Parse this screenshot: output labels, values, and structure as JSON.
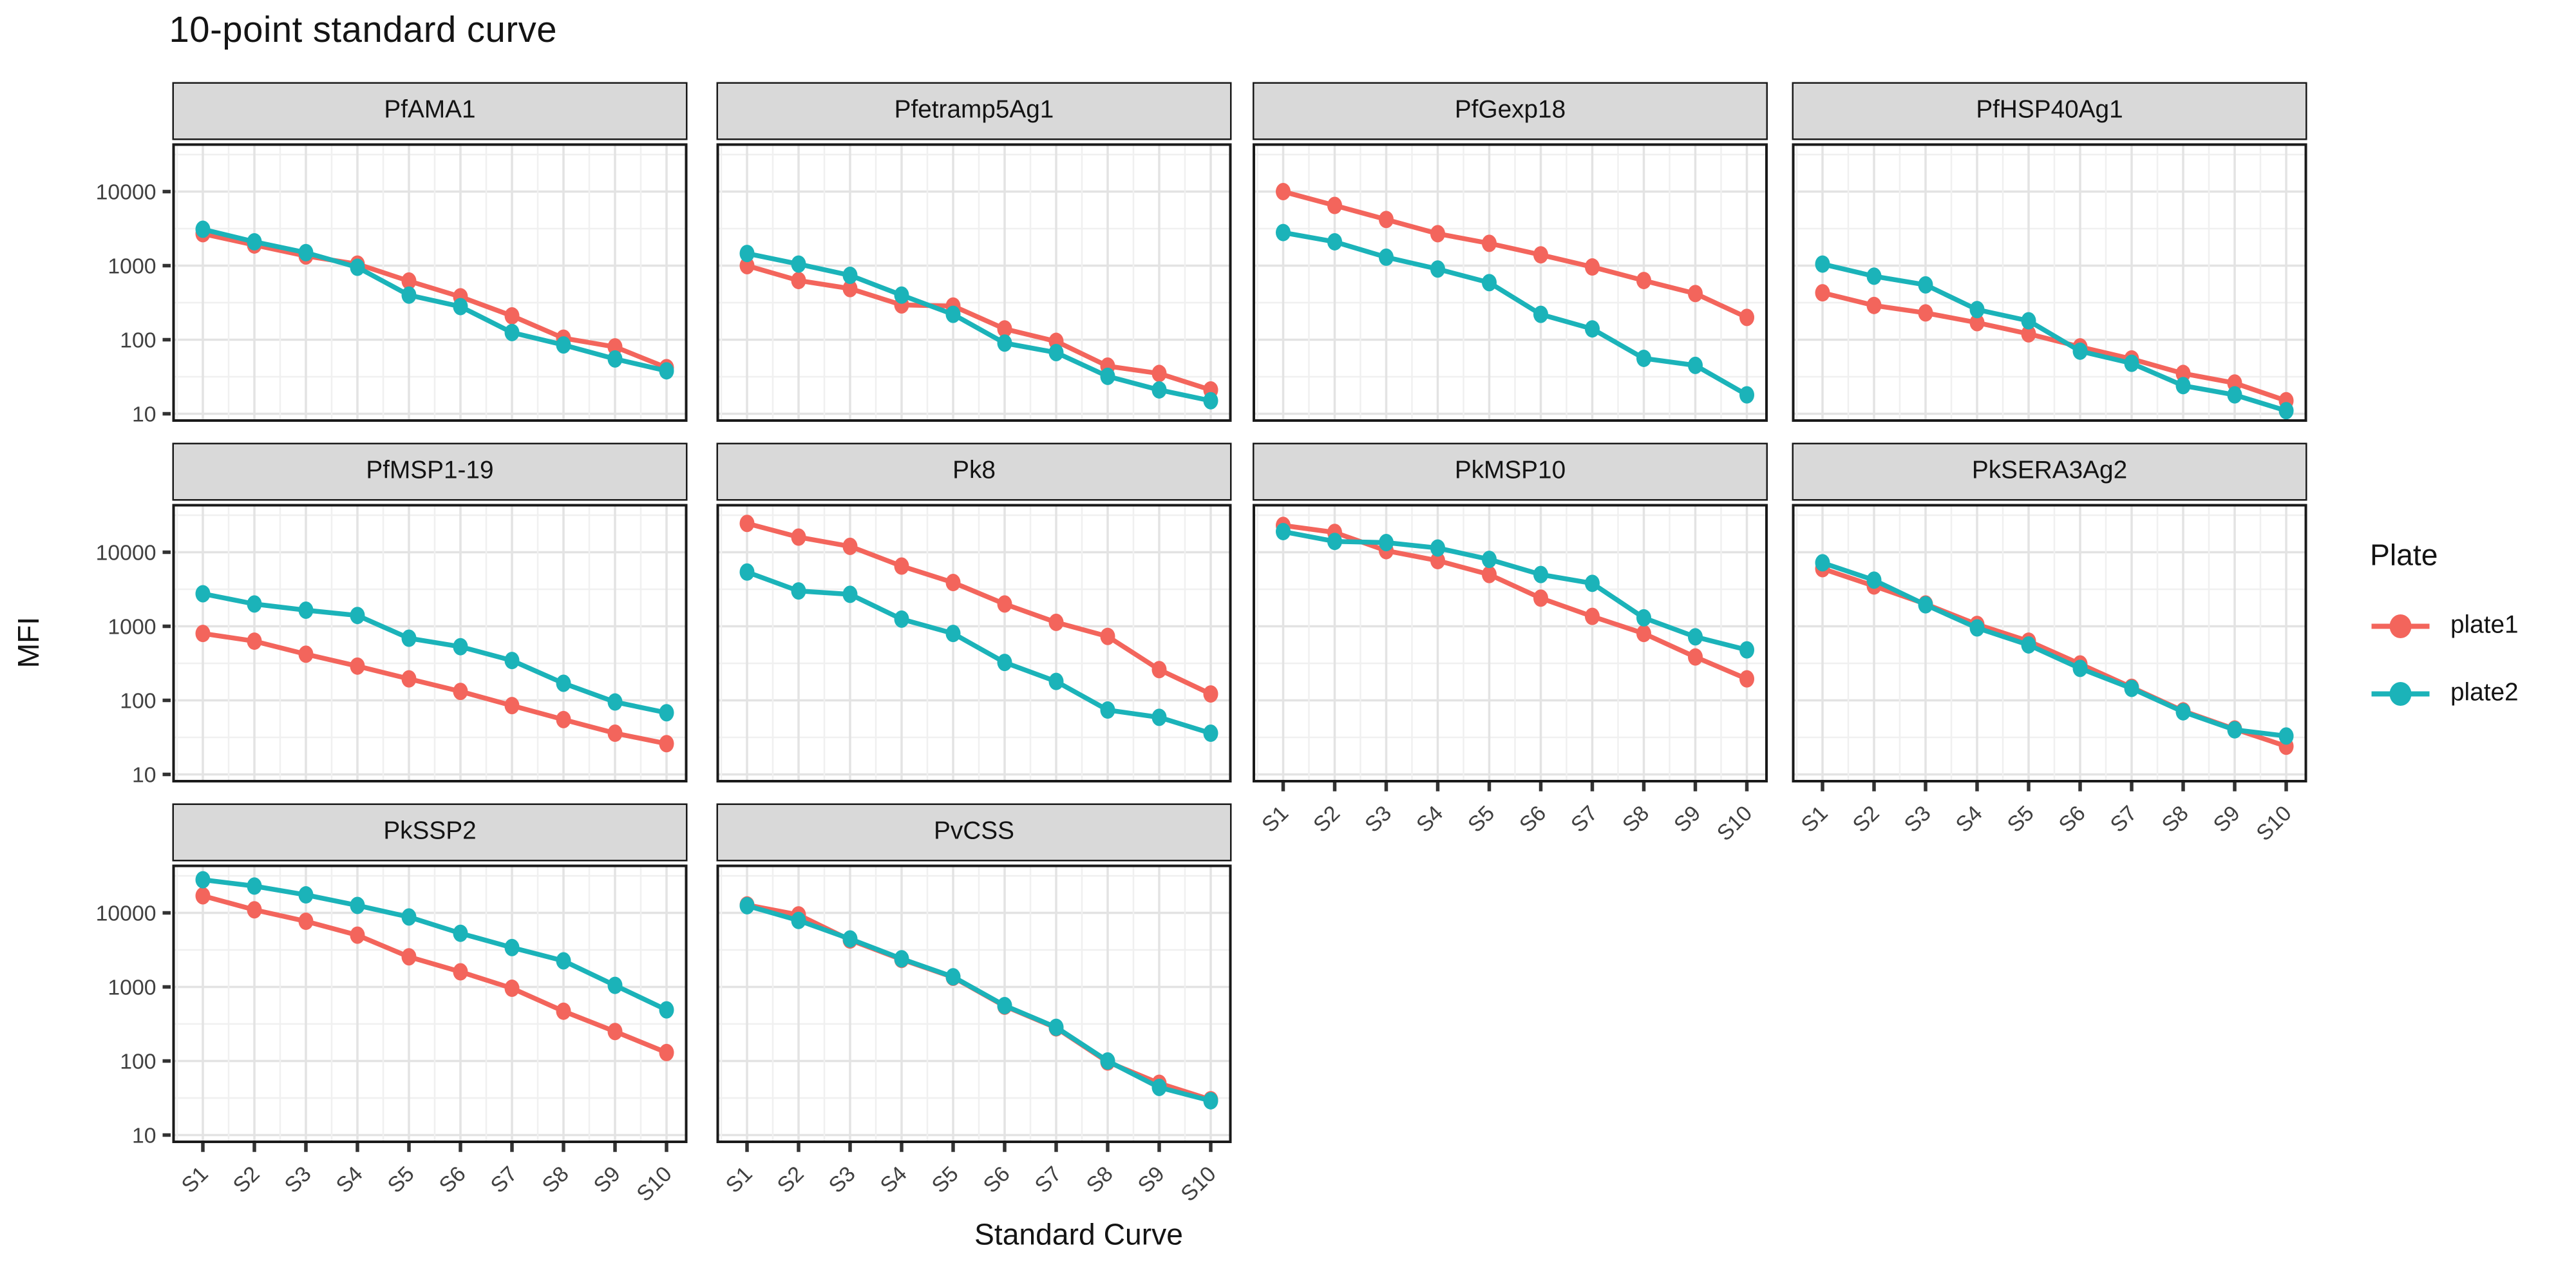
{
  "title": "10-point standard curve",
  "y_axis": {
    "label": "MFI",
    "ticks": [
      "10000",
      "1000",
      "100",
      "10"
    ]
  },
  "x_axis": {
    "label": "Standard Curve",
    "ticks": [
      "S1",
      "S2",
      "S3",
      "S4",
      "S5",
      "S6",
      "S7",
      "S8",
      "S9",
      "S10"
    ]
  },
  "legend": {
    "title": "Plate",
    "items": [
      {
        "label": "plate1",
        "color": "#F3655C"
      },
      {
        "label": "plate2",
        "color": "#1BB3B9"
      }
    ]
  },
  "colors": {
    "strip_bg": "#D9D9D9",
    "panel_border": "#1A1A1A",
    "grid_major": "#E3E3E3",
    "grid_minor": "#F0F0F0",
    "axis_text": "#404040",
    "background": "#FFFFFF"
  },
  "chart_data": {
    "type": "line",
    "scale": "log10",
    "title": "10-point standard curve",
    "xlabel": "Standard Curve",
    "ylabel": "MFI",
    "ylim": [
      8,
      45000
    ],
    "y_tick_values": [
      10,
      100,
      1000,
      10000
    ],
    "grid": true,
    "legend_position": "right",
    "categories": [
      "S1",
      "S2",
      "S3",
      "S4",
      "S5",
      "S6",
      "S7",
      "S8",
      "S9",
      "S10"
    ],
    "facets": [
      {
        "name": "PfAMA1",
        "series": [
          {
            "name": "plate1",
            "values": [
              2700,
              1900,
              1350,
              1050,
              620,
              380,
              210,
              105,
              80,
              42
            ]
          },
          {
            "name": "plate2",
            "values": [
              3100,
              2100,
              1500,
              950,
              400,
              280,
              125,
              85,
              55,
              38
            ]
          }
        ]
      },
      {
        "name": "Pfetramp5Ag1",
        "series": [
          {
            "name": "plate1",
            "values": [
              1000,
              630,
              490,
              295,
              285,
              140,
              95,
              44,
              35,
              21
            ]
          },
          {
            "name": "plate2",
            "values": [
              1460,
              1050,
              740,
              400,
              220,
              90,
              67,
              32,
              21,
              15
            ]
          }
        ]
      },
      {
        "name": "PfGexp18",
        "series": [
          {
            "name": "plate1",
            "values": [
              10000,
              6500,
              4200,
              2700,
              2000,
              1400,
              960,
              630,
              420,
              200
            ]
          },
          {
            "name": "plate2",
            "values": [
              2800,
              2100,
              1300,
              900,
              590,
              220,
              140,
              56,
              45,
              18
            ]
          }
        ]
      },
      {
        "name": "PfHSP40Ag1",
        "series": [
          {
            "name": "plate1",
            "values": [
              430,
              290,
              230,
              170,
              120,
              80,
              55,
              35,
              26,
              15
            ]
          },
          {
            "name": "plate2",
            "values": [
              1050,
              720,
              550,
              255,
              180,
              70,
              48,
              24,
              18,
              11
            ]
          }
        ]
      },
      {
        "name": "PfMSP1-19",
        "series": [
          {
            "name": "plate1",
            "values": [
              800,
              630,
              420,
              290,
              195,
              132,
              85,
              55,
              36,
              26
            ]
          },
          {
            "name": "plate2",
            "values": [
              2750,
              2000,
              1650,
              1400,
              690,
              530,
              345,
              170,
              95,
              68
            ]
          }
        ]
      },
      {
        "name": "Pk8",
        "series": [
          {
            "name": "plate1",
            "values": [
              24500,
              16000,
              12000,
              6500,
              3900,
              2000,
              1130,
              730,
              260,
              122
            ]
          },
          {
            "name": "plate2",
            "values": [
              5400,
              3000,
              2700,
              1250,
              800,
              325,
              180,
              74,
              59,
              36
            ]
          }
        ]
      },
      {
        "name": "PkMSP10",
        "series": [
          {
            "name": "plate1",
            "values": [
              23000,
              18500,
              10500,
              7700,
              5000,
              2400,
              1360,
              800,
              385,
              195
            ]
          },
          {
            "name": "plate2",
            "values": [
              19000,
              14000,
              13500,
              11400,
              8000,
              5000,
              3800,
              1300,
              720,
              480
            ]
          }
        ]
      },
      {
        "name": "PkSERA3Ag2",
        "series": [
          {
            "name": "plate1",
            "values": [
              6000,
              3500,
              2000,
              1060,
              630,
              310,
              150,
              72,
              41,
              24
            ]
          },
          {
            "name": "plate2",
            "values": [
              7200,
              4200,
              1950,
              950,
              560,
              270,
              145,
              70,
              40,
              33
            ]
          }
        ]
      },
      {
        "name": "PkSSP2",
        "series": [
          {
            "name": "plate1",
            "values": [
              17000,
              11000,
              7700,
              5000,
              2550,
              1600,
              960,
              470,
              250,
              130
            ]
          },
          {
            "name": "plate2",
            "values": [
              28000,
              23000,
              17500,
              12600,
              8800,
              5300,
              3400,
              2250,
              1050,
              490
            ]
          }
        ]
      },
      {
        "name": "PvCSS",
        "series": [
          {
            "name": "plate1",
            "values": [
              12800,
              9400,
              4300,
              2350,
              1350,
              550,
              280,
              97,
              50,
              30
            ]
          },
          {
            "name": "plate2",
            "values": [
              12500,
              7900,
              4450,
              2400,
              1370,
              560,
              285,
              100,
              44,
              29
            ]
          }
        ]
      }
    ]
  }
}
